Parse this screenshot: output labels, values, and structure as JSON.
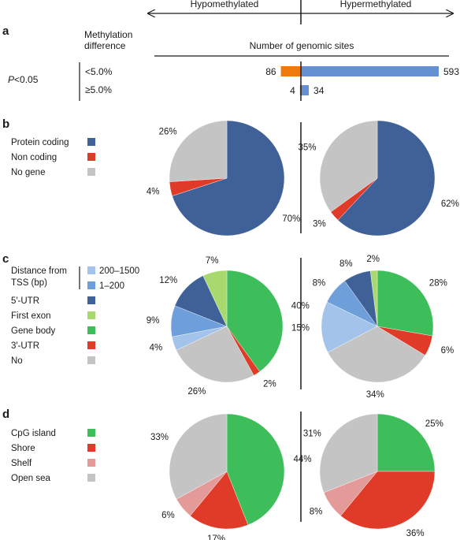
{
  "colors": {
    "protein_coding": "#3f6198",
    "non_coding": "#e03a28",
    "no_gene": "#c4c4c4",
    "tss_200_1500": "#a3c3ea",
    "tss_1_200": "#6f9fdb",
    "utr5": "#3f6198",
    "first_exon": "#a9d86f",
    "gene_body": "#3dbe5a",
    "utr3": "#e03a28",
    "no_feature": "#c4c4c4",
    "cpg_island": "#3dbe5a",
    "shore": "#e03a28",
    "shelf": "#e59a9a",
    "open_sea": "#c4c4c4",
    "bar_hypo": "#ef7b10",
    "bar_hyper": "#6491d2"
  },
  "header": {
    "hypomethylated": "Hypomethylated",
    "hypermethylated": "Hypermethylated"
  },
  "panel_a": {
    "letter": "a",
    "col_label_line1": "Methylation",
    "col_label_line2": "difference",
    "axis_title": "Number of genomic sites",
    "pvalue_prefix": "P",
    "pvalue_suffix": "<0.05",
    "rows": [
      {
        "label": "<5.0%",
        "hypo_label": "86",
        "hyper_label": "593"
      },
      {
        "label": "≥5.0%",
        "hypo_label": "4",
        "hyper_label": "34"
      }
    ]
  },
  "panel_b": {
    "letter": "b",
    "legend": [
      "Protein coding",
      "Non coding",
      "No gene"
    ],
    "hypo_labels": [
      "70%",
      "4%",
      "26%"
    ],
    "hyper_labels": [
      "62%",
      "3%",
      "35%"
    ]
  },
  "panel_c": {
    "letter": "c",
    "legend_tss_line1": "Distance from",
    "legend_tss_line2": "TSS (bp)",
    "legend_tss": [
      "200–1500",
      "1–200"
    ],
    "legend": [
      "5′-UTR",
      "First exon",
      "Gene body",
      "3′-UTR",
      "No"
    ],
    "hypo_labels": [
      "40%",
      "2%",
      "26%",
      "4%",
      "9%",
      "12%",
      "7%"
    ],
    "hyper_labels": [
      "28%",
      "6%",
      "34%",
      "15%",
      "8%",
      "8%",
      "2%"
    ]
  },
  "panel_d": {
    "letter": "d",
    "legend": [
      "CpG island",
      "Shore",
      "Shelf",
      "Open sea"
    ],
    "hypo_labels": [
      "44%",
      "17%",
      "6%",
      "33%"
    ],
    "hyper_labels": [
      "25%",
      "36%",
      "8%",
      "31%"
    ]
  },
  "chart_data": [
    {
      "type": "bar",
      "orientation": "horizontal",
      "title": "Number of genomic sites",
      "categories": [
        "<5.0%",
        "≥5.0%"
      ],
      "series": [
        {
          "name": "Hypomethylated",
          "values": [
            86,
            4
          ]
        },
        {
          "name": "Hypermethylated",
          "values": [
            593,
            34
          ]
        }
      ]
    },
    {
      "type": "pie",
      "categories": [
        "Protein coding",
        "Non coding",
        "No gene"
      ],
      "series": [
        {
          "name": "Hypomethylated",
          "values": [
            70,
            4,
            26
          ]
        },
        {
          "name": "Hypermethylated",
          "values": [
            62,
            3,
            35
          ]
        }
      ]
    },
    {
      "type": "pie",
      "categories": [
        "Gene body",
        "3′-UTR",
        "No",
        "200–1500",
        "1–200",
        "5′-UTR",
        "First exon"
      ],
      "series": [
        {
          "name": "Hypomethylated",
          "values": [
            40,
            2,
            26,
            4,
            9,
            12,
            7
          ]
        },
        {
          "name": "Hypermethylated",
          "values": [
            28,
            6,
            34,
            15,
            8,
            8,
            2
          ]
        }
      ]
    },
    {
      "type": "pie",
      "categories": [
        "CpG island",
        "Shore",
        "Shelf",
        "Open sea"
      ],
      "series": [
        {
          "name": "Hypomethylated",
          "values": [
            44,
            17,
            6,
            33
          ]
        },
        {
          "name": "Hypermethylated",
          "values": [
            25,
            36,
            8,
            31
          ]
        }
      ]
    }
  ]
}
